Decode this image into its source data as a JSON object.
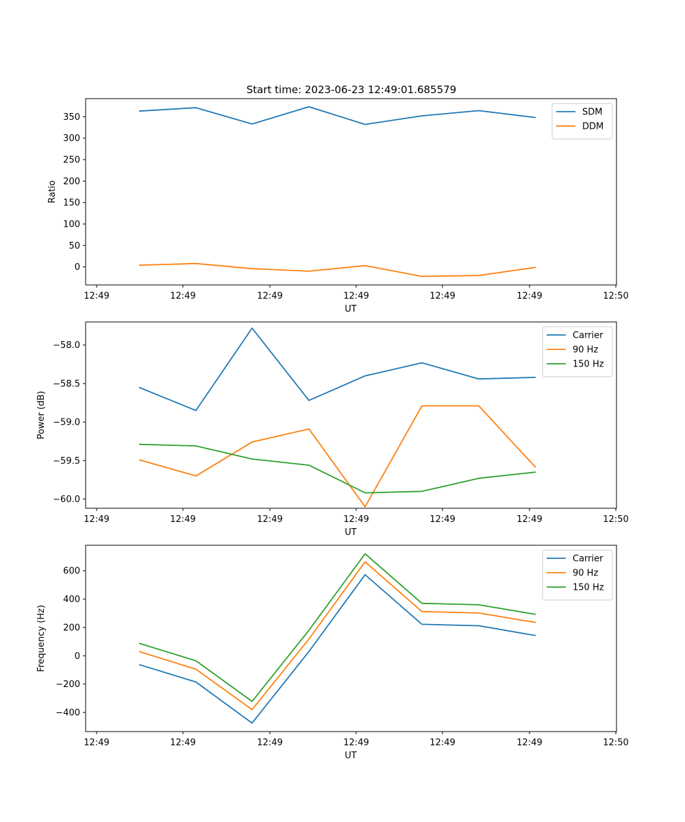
{
  "figure_title": "Start time: 2023-06-23 12:49:01.685579",
  "chart_data": [
    {
      "type": "line",
      "title": "Start time: 2023-06-23 12:49:01.685579",
      "xlabel": "UT",
      "ylabel": "Ratio",
      "x_tick_labels": [
        "12:49",
        "12:49",
        "12:49",
        "12:49",
        "12:49",
        "12:49",
        "12:50"
      ],
      "y_ticks": [
        0,
        50,
        100,
        150,
        200,
        250,
        300,
        350
      ],
      "ylim": [
        -42,
        392
      ],
      "x": [
        0,
        1,
        2,
        3,
        4,
        5,
        6,
        7
      ],
      "legend_position": "top-right",
      "grid": false,
      "series": [
        {
          "name": "SDM",
          "color": "#1f77b4",
          "values": [
            363,
            371,
            333,
            373,
            332,
            352,
            364,
            348
          ]
        },
        {
          "name": "DDM",
          "color": "#ff7f0e",
          "values": [
            4,
            8,
            -4,
            -10,
            3,
            -22,
            -20,
            -1
          ]
        }
      ]
    },
    {
      "type": "line",
      "title": "",
      "xlabel": "UT",
      "ylabel": "Power (dB)",
      "x_tick_labels": [
        "12:49",
        "12:49",
        "12:49",
        "12:49",
        "12:49",
        "12:49",
        "12:50"
      ],
      "y_ticks": [
        -60.0,
        -59.5,
        -59.0,
        -58.5,
        -58.0
      ],
      "y_tick_labels": [
        "−60.0",
        "−59.5",
        "−59.0",
        "−58.5",
        "−58.0"
      ],
      "ylim": [
        -60.12,
        -57.7
      ],
      "x": [
        0,
        1,
        2,
        3,
        4,
        5,
        6,
        7
      ],
      "legend_position": "top-right",
      "grid": false,
      "series": [
        {
          "name": "Carrier",
          "color": "#1f77b4",
          "values": [
            -58.55,
            -58.85,
            -57.78,
            -58.72,
            -58.4,
            -58.23,
            -58.44,
            -58.42
          ]
        },
        {
          "name": "90 Hz",
          "color": "#ff7f0e",
          "values": [
            -59.49,
            -59.7,
            -59.26,
            -59.09,
            -60.1,
            -58.79,
            -58.79,
            -59.59
          ]
        },
        {
          "name": "150 Hz",
          "color": "#2ca02c",
          "values": [
            -59.29,
            -59.31,
            -59.48,
            -59.56,
            -59.92,
            -59.9,
            -59.73,
            -59.65
          ]
        }
      ]
    },
    {
      "type": "line",
      "title": "",
      "xlabel": "UT",
      "ylabel": "Frequency (Hz)",
      "x_tick_labels": [
        "12:49",
        "12:49",
        "12:49",
        "12:49",
        "12:49",
        "12:49",
        "12:50"
      ],
      "y_ticks": [
        -400,
        -200,
        0,
        200,
        400,
        600
      ],
      "y_tick_labels": [
        "−400",
        "−200",
        "0",
        "200",
        "400",
        "600"
      ],
      "ylim": [
        -535,
        780
      ],
      "x": [
        0,
        1,
        2,
        3,
        4,
        5,
        6,
        7
      ],
      "legend_position": "top-right",
      "grid": false,
      "series": [
        {
          "name": "Carrier",
          "color": "#1f77b4",
          "values": [
            -62,
            -185,
            -475,
            30,
            572,
            222,
            212,
            143
          ]
        },
        {
          "name": "90 Hz",
          "color": "#ff7f0e",
          "values": [
            30,
            -95,
            -380,
            118,
            663,
            312,
            302,
            235
          ]
        },
        {
          "name": "150 Hz",
          "color": "#2ca02c",
          "values": [
            88,
            -35,
            -322,
            180,
            720,
            370,
            360,
            292
          ]
        }
      ]
    }
  ]
}
